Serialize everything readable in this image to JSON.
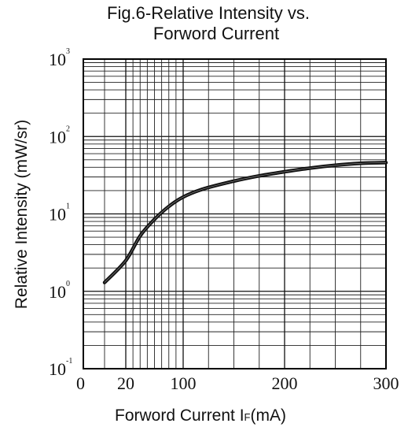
{
  "chart_data": {
    "type": "line",
    "title_lines": [
      "Fig.6-Relative Intensity vs.",
      "Forword Current"
    ],
    "xlabel": "Forword Current I",
    "xlabel_sub": "F",
    "xlabel_unit": "(mA)",
    "ylabel": "Relative Intensity (mW/sr)",
    "x_ticks": [
      "0",
      "20",
      "100",
      "200",
      "300"
    ],
    "y_ticks": [
      {
        "base": "10",
        "exp": "3"
      },
      {
        "base": "10",
        "exp": "2"
      },
      {
        "base": "10",
        "exp": "1"
      },
      {
        "base": "10",
        "exp": "0"
      },
      {
        "base": "10",
        "exp": "-1"
      }
    ],
    "y_scale": "log",
    "ylim": [
      0.1,
      1000
    ],
    "grid": true,
    "series": [
      {
        "x": [
          10,
          20,
          40,
          60,
          80,
          100,
          120,
          150,
          175,
          200,
          225,
          250,
          275,
          300
        ],
        "y": [
          1.3,
          2.5,
          5.2,
          8.5,
          12.5,
          16.5,
          21,
          26.5,
          31,
          35,
          39,
          42.5,
          45,
          46
        ]
      }
    ]
  }
}
